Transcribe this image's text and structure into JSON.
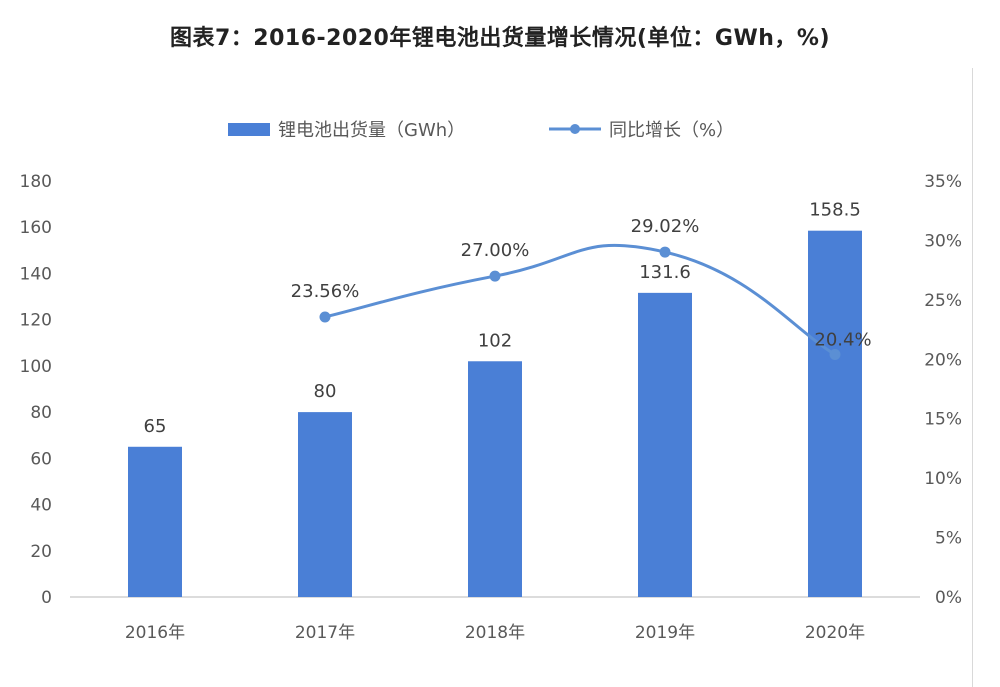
{
  "title": "图表7：2016-2020年锂电池出货量增长情况(单位：GWh，%)",
  "chart_data": {
    "type": "bar",
    "categories": [
      "2016年",
      "2017年",
      "2018年",
      "2019年",
      "2020年"
    ],
    "series": [
      {
        "name": "锂电池出货量（GWh）",
        "type": "bar",
        "axis": "left",
        "color": "#4a7fd6",
        "values": [
          65,
          80,
          102,
          131.6,
          158.5
        ],
        "labels": [
          "65",
          "80",
          "102",
          "131.6",
          "158.5"
        ]
      },
      {
        "name": "同比增长（%）",
        "type": "line",
        "axis": "right",
        "color": "#5b8fd4",
        "values": [
          null,
          23.56,
          27.0,
          29.02,
          20.4
        ],
        "labels": [
          "",
          "23.56%",
          "27.00%",
          "29.02%",
          "20.4%"
        ]
      }
    ],
    "y_left": {
      "ylim": [
        0,
        180
      ],
      "ticks": [
        "0",
        "20",
        "40",
        "60",
        "80",
        "100",
        "120",
        "140",
        "160",
        "180"
      ]
    },
    "y_right": {
      "ylim": [
        0,
        35
      ],
      "ticks": [
        "0%",
        "5%",
        "10%",
        "15%",
        "20%",
        "25%",
        "30%",
        "35%"
      ]
    },
    "grid": false,
    "legend": "top"
  }
}
